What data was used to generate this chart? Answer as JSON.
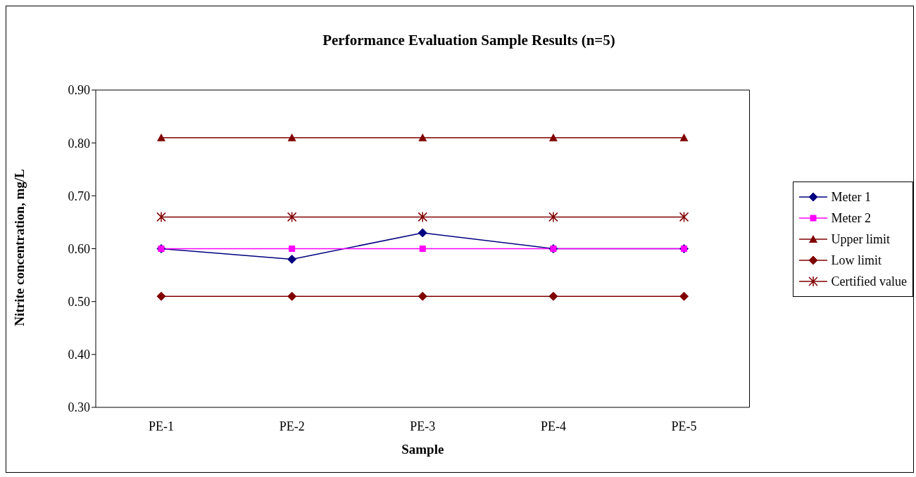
{
  "chart_data": {
    "type": "line",
    "title": "Performance Evaluation Sample Results (n=5)",
    "xlabel": "Sample",
    "ylabel": "Nitrite concentration, mg/L",
    "categories": [
      "PE-1",
      "PE-2",
      "PE-3",
      "PE-4",
      "PE-5"
    ],
    "series": [
      {
        "name": "Meter 1",
        "color": "#000080",
        "marker": "diamond",
        "values": [
          0.6,
          0.58,
          0.63,
          0.6,
          0.6
        ]
      },
      {
        "name": "Meter 2",
        "color": "#ff00ff",
        "marker": "square",
        "values": [
          0.6,
          0.6,
          0.6,
          0.6,
          0.6
        ]
      },
      {
        "name": "Upper limit",
        "color": "#800000",
        "marker": "triangle",
        "values": [
          0.81,
          0.81,
          0.81,
          0.81,
          0.81
        ]
      },
      {
        "name": "Low limit",
        "color": "#800000",
        "marker": "diamond",
        "values": [
          0.51,
          0.51,
          0.51,
          0.51,
          0.51
        ]
      },
      {
        "name": "Certified value",
        "color": "#800000",
        "marker": "cross",
        "values": [
          0.66,
          0.66,
          0.66,
          0.66,
          0.66
        ]
      }
    ],
    "ylim": [
      0.3,
      0.9
    ],
    "yticks": [
      {
        "value": 0.3,
        "label": "0.30"
      },
      {
        "value": 0.4,
        "label": "0.40"
      },
      {
        "value": 0.5,
        "label": "0.50"
      },
      {
        "value": 0.6,
        "label": "0.60"
      },
      {
        "value": 0.7,
        "label": "0.70"
      },
      {
        "value": 0.8,
        "label": "0.80"
      },
      {
        "value": 0.9,
        "label": "0.90"
      }
    ],
    "grid": false,
    "legend": "right",
    "line_style": "solid"
  }
}
